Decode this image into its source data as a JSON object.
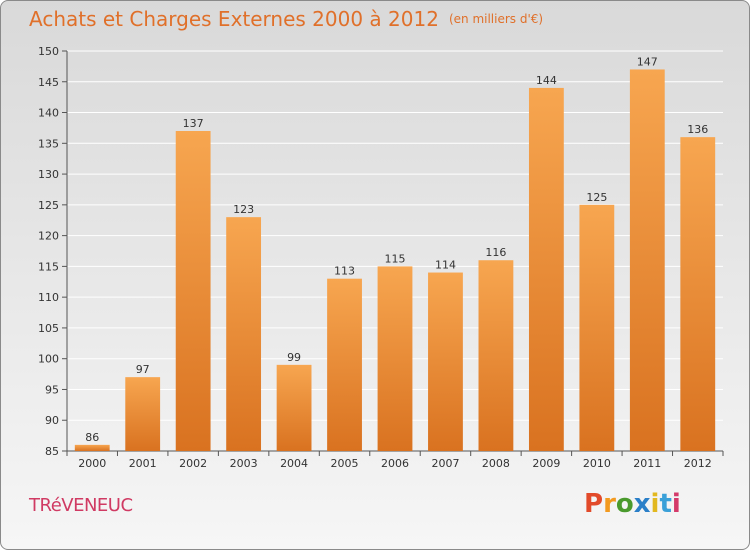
{
  "header": {
    "title": "Achats et Charges Externes 2000 à 2012",
    "subtitle": "(en milliers d'€)"
  },
  "footer": {
    "town": "TRéVENEUC",
    "brand": "Proxiti"
  },
  "colors": {
    "bar_top": "#f7a650",
    "bar_bottom": "#d97220",
    "title": "#e0702a",
    "town": "#d03a63",
    "logo_letters": [
      "#e24a2a",
      "#f39a1f",
      "#4a9a2d",
      "#2a7fc8",
      "#e2b81f",
      "#3aa0d8",
      "#d43a6a"
    ]
  },
  "chart_data": {
    "type": "bar",
    "categories": [
      "2000",
      "2001",
      "2002",
      "2003",
      "2004",
      "2005",
      "2006",
      "2007",
      "2008",
      "2009",
      "2010",
      "2011",
      "2012"
    ],
    "values": [
      86,
      97,
      137,
      123,
      99,
      113,
      115,
      114,
      116,
      144,
      125,
      147,
      136
    ],
    "ylim": [
      85,
      150
    ],
    "yticks": [
      85,
      90,
      95,
      100,
      105,
      110,
      115,
      120,
      125,
      130,
      135,
      140,
      145,
      150
    ],
    "grid": true,
    "data_labels": true
  }
}
